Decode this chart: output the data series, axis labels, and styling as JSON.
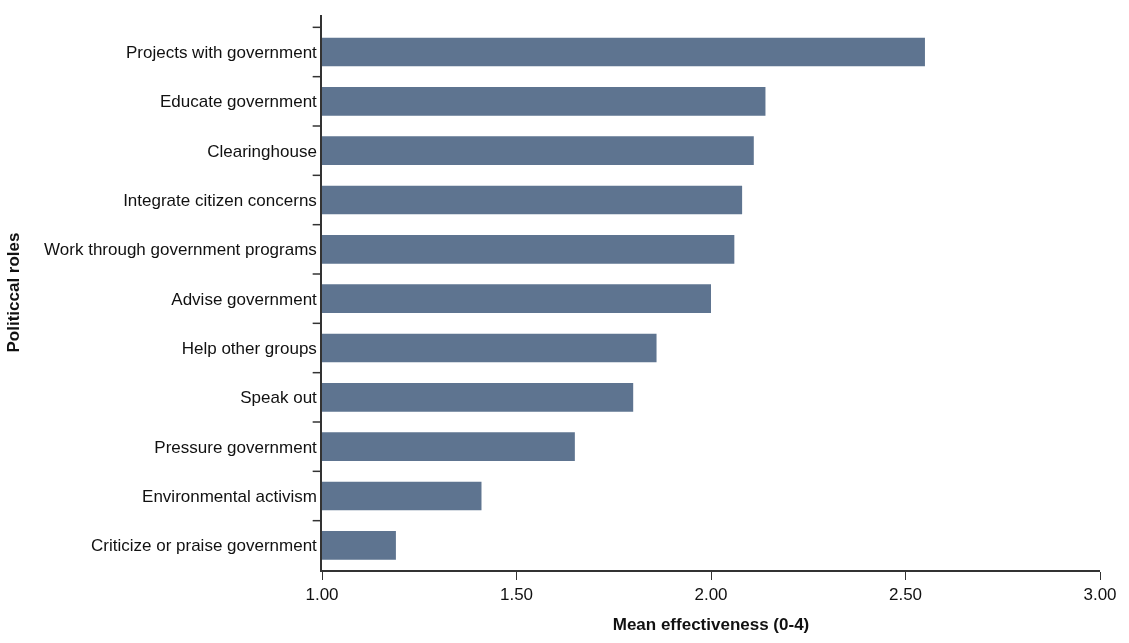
{
  "chart_data": {
    "type": "bar",
    "orientation": "horizontal",
    "xlabel": "Mean effectiveness (0-4)",
    "ylabel": "Politiccal roles",
    "categories": [
      "Projects with government",
      "Educate government",
      "Clearinghouse",
      "Integrate citizen concerns",
      "Work through government programs",
      "Advise government",
      "Help other groups",
      "Speak out",
      "Pressure government",
      "Environmental activism",
      "Criticize or praise government"
    ],
    "values": [
      2.55,
      2.14,
      2.11,
      2.08,
      2.06,
      2.0,
      1.86,
      1.8,
      1.65,
      1.41,
      1.19
    ],
    "color": "#5e7490",
    "xlim": [
      1,
      3
    ],
    "xticks": [
      {
        "value": 1,
        "label": "1.00"
      },
      {
        "value": 1.5,
        "label": "1.50"
      },
      {
        "value": 2,
        "label": "2.00"
      },
      {
        "value": 2.5,
        "label": "2.50"
      },
      {
        "value": 3,
        "label": "3.00"
      }
    ]
  }
}
